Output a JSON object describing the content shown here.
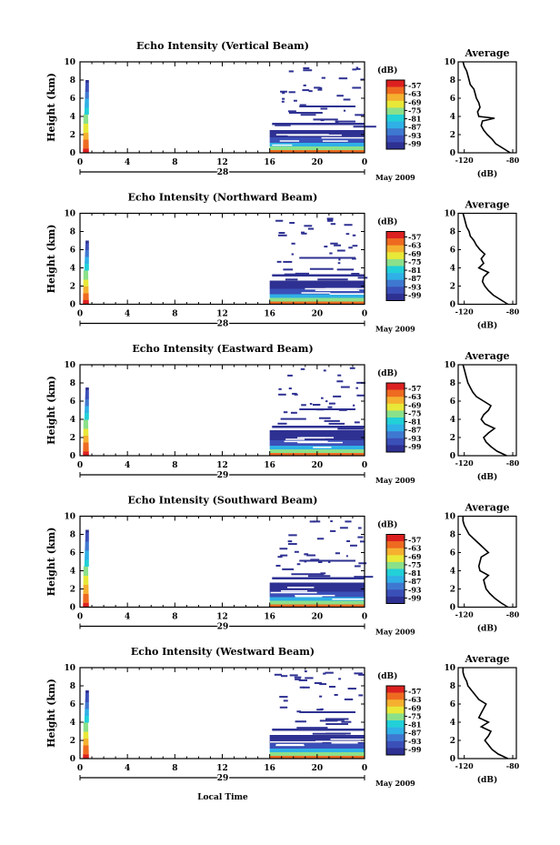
{
  "page": {
    "xlabel": "Local Time",
    "date_label": "May 2009"
  },
  "colorbar": {
    "unit": "(dB)",
    "tick_labels": [
      "-57",
      "-63",
      "-69",
      "-75",
      "-81",
      "-87",
      "-93",
      "-99"
    ],
    "colors": [
      "#2e3192",
      "#3b4fb8",
      "#3f78d0",
      "#2fb0e6",
      "#22d0d8",
      "#8be08a",
      "#e8e838",
      "#f5b030",
      "#ee6a20",
      "#dc2020"
    ]
  },
  "chart_data": [
    {
      "type": "heatmap",
      "title": "Echo Intensity (Vertical Beam)",
      "ylabel": "Height (km)",
      "x_tick_labels": [
        "0",
        "4",
        "8",
        "12",
        "16",
        "20",
        "0"
      ],
      "ylim": [
        0,
        10
      ],
      "y_ticks": [
        0,
        2,
        4,
        6,
        8,
        10
      ],
      "day_label": "28",
      "low_echo_top_km": 2.5,
      "convective_top_km": 8.0,
      "profile": {
        "title": "Average",
        "xlabel": "(dB)",
        "x_tick_labels": [
          "-120",
          "-80"
        ],
        "xlim": [
          -125,
          -77
        ],
        "height_km": [
          0,
          0.5,
          1,
          1.5,
          2,
          2.5,
          3,
          3.5,
          3.8,
          4,
          4.5,
          5,
          5.5,
          6,
          6.5,
          7,
          7.5,
          8,
          8.5,
          9,
          9.5,
          10
        ],
        "value_db": [
          -82,
          -88,
          -94,
          -97,
          -101,
          -104,
          -106,
          -105,
          -95,
          -108,
          -109,
          -107,
          -108,
          -110,
          -111,
          -112,
          -115,
          -116,
          -117,
          -118,
          -120,
          -121
        ]
      }
    },
    {
      "type": "heatmap",
      "title": "Echo Intensity (Northward Beam)",
      "ylabel": "Height (km)",
      "x_tick_labels": [
        "0",
        "4",
        "8",
        "12",
        "16",
        "20",
        "0"
      ],
      "ylim": [
        0,
        10
      ],
      "y_ticks": [
        0,
        2,
        4,
        6,
        8,
        10
      ],
      "day_label": "28",
      "low_echo_top_km": 2.6,
      "convective_top_km": 7.0,
      "profile": {
        "title": "Average",
        "xlabel": "(dB)",
        "x_tick_labels": [
          "-120",
          "-80"
        ],
        "xlim": [
          -125,
          -77
        ],
        "height_km": [
          0,
          0.5,
          1,
          1.5,
          2,
          2.5,
          3,
          3.5,
          4,
          4.5,
          5,
          5.5,
          6,
          6.5,
          7,
          7.5,
          8,
          8.5,
          9,
          9.5,
          10
        ],
        "value_db": [
          -84,
          -90,
          -96,
          -100,
          -103,
          -105,
          -104,
          -100,
          -108,
          -104,
          -106,
          -103,
          -107,
          -110,
          -112,
          -115,
          -116,
          -118,
          -119,
          -120,
          -121
        ]
      }
    },
    {
      "type": "heatmap",
      "title": "Echo Intensity (Eastward Beam)",
      "ylabel": "Height (km)",
      "x_tick_labels": [
        "0",
        "4",
        "8",
        "12",
        "16",
        "20",
        "0"
      ],
      "ylim": [
        0,
        10
      ],
      "y_ticks": [
        0,
        2,
        4,
        6,
        8,
        10
      ],
      "day_label": "29",
      "low_echo_top_km": 2.8,
      "convective_top_km": 7.5,
      "profile": {
        "title": "Average",
        "xlabel": "(dB)",
        "x_tick_labels": [
          "-120",
          "-80"
        ],
        "xlim": [
          -125,
          -77
        ],
        "height_km": [
          0,
          0.5,
          1,
          1.5,
          2,
          2.5,
          3,
          3.5,
          4,
          4.5,
          5,
          5.5,
          6,
          6.5,
          7,
          7.5,
          8,
          8.5,
          9,
          9.5,
          10
        ],
        "value_db": [
          -85,
          -93,
          -98,
          -102,
          -104,
          -100,
          -95,
          -103,
          -106,
          -104,
          -100,
          -98,
          -104,
          -110,
          -113,
          -115,
          -117,
          -118,
          -119,
          -120,
          -121
        ]
      }
    },
    {
      "type": "heatmap",
      "title": "Echo Intensity (Southward Beam)",
      "ylabel": "Height (km)",
      "x_tick_labels": [
        "0",
        "4",
        "8",
        "12",
        "16",
        "20",
        "0"
      ],
      "ylim": [
        0,
        10
      ],
      "y_ticks": [
        0,
        2,
        4,
        6,
        8,
        10
      ],
      "day_label": "29",
      "low_echo_top_km": 2.7,
      "convective_top_km": 8.5,
      "profile": {
        "title": "Average",
        "xlabel": "(dB)",
        "x_tick_labels": [
          "-120",
          "-80"
        ],
        "xlim": [
          -125,
          -77
        ],
        "height_km": [
          0,
          0.5,
          1,
          1.5,
          2,
          2.5,
          3,
          3.5,
          4,
          4.5,
          5,
          5.5,
          6,
          6.5,
          7,
          7.5,
          8,
          8.5,
          9,
          9.5,
          10
        ],
        "value_db": [
          -84,
          -90,
          -95,
          -99,
          -102,
          -103,
          -104,
          -100,
          -107,
          -108,
          -107,
          -106,
          -100,
          -104,
          -108,
          -112,
          -116,
          -118,
          -120,
          -121,
          -121
        ]
      }
    },
    {
      "type": "heatmap",
      "title": "Echo Intensity (Westward Beam)",
      "ylabel": "Height (km)",
      "x_tick_labels": [
        "0",
        "4",
        "8",
        "12",
        "16",
        "20",
        "0"
      ],
      "ylim": [
        0,
        10
      ],
      "y_ticks": [
        0,
        2,
        4,
        6,
        8,
        10
      ],
      "day_label": "29",
      "low_echo_top_km": 2.6,
      "convective_top_km": 7.5,
      "profile": {
        "title": "Average",
        "xlabel": "(dB)",
        "x_tick_labels": [
          "-120",
          "-80"
        ],
        "xlim": [
          -125,
          -77
        ],
        "height_km": [
          0,
          0.5,
          1,
          1.5,
          2,
          2.5,
          3,
          3.5,
          4,
          4.5,
          5,
          5.5,
          6,
          6.5,
          7,
          7.5,
          8,
          8.5,
          9,
          9.5,
          10
        ],
        "value_db": [
          -84,
          -92,
          -97,
          -100,
          -103,
          -100,
          -98,
          -106,
          -100,
          -108,
          -106,
          -104,
          -102,
          -108,
          -111,
          -114,
          -117,
          -118,
          -120,
          -121,
          -121
        ]
      }
    }
  ]
}
